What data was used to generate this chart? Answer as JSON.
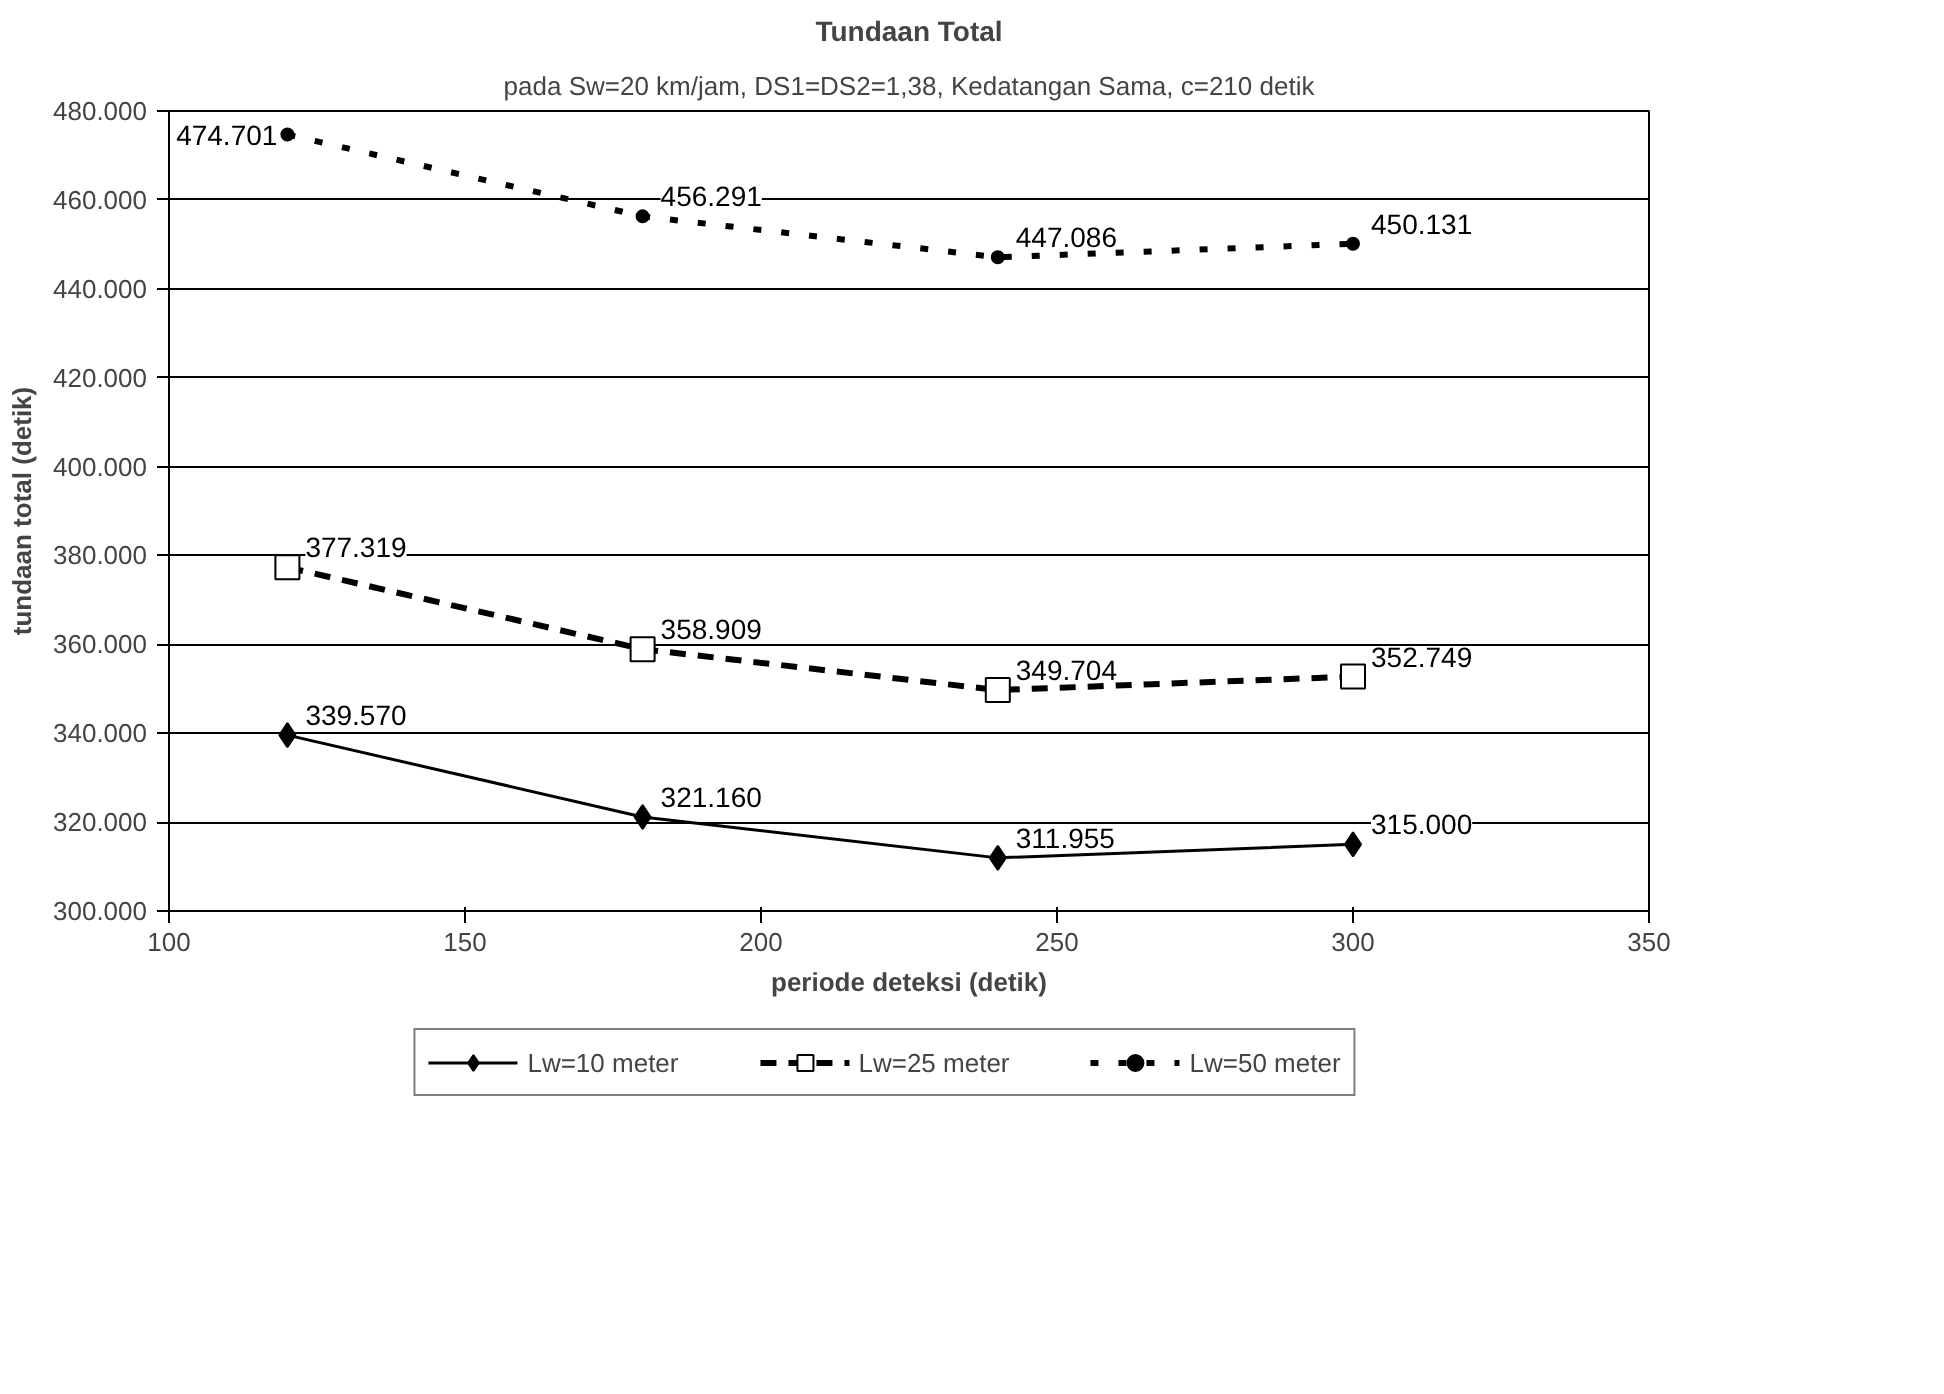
{
  "chart_data": {
    "type": "line",
    "title": "Tundaan Total",
    "subtitle": "pada Sw=20 km/jam, DS1=DS2=1,38, Kedatangan Sama, c=210 detik",
    "xlabel": "periode deteksi (detik)",
    "ylabel": "tundaan total (detik)",
    "x": [
      120,
      180,
      240,
      300
    ],
    "series": [
      {
        "name": "Lw=10 meter",
        "color": "#000000",
        "marker": "diamond",
        "line_style": "solid",
        "values": [
          339570,
          321160,
          311955,
          315000
        ],
        "value_labels": [
          "339.570",
          "321.160",
          "311.955",
          "315.000"
        ]
      },
      {
        "name": "Lw=25 meter",
        "color": "#000000",
        "marker": "square",
        "line_style": "dashed",
        "values": [
          377319,
          358909,
          349704,
          352749
        ],
        "value_labels": [
          "377.319",
          "358.909",
          "349.704",
          "352.749"
        ]
      },
      {
        "name": "Lw=50 meter",
        "color": "#000000",
        "marker": "circle",
        "line_style": "dotted",
        "values": [
          474701,
          456291,
          447086,
          450131
        ],
        "value_labels": [
          "474.701",
          "456.291",
          "447.086",
          "450.131"
        ]
      }
    ],
    "xlim": [
      100,
      350
    ],
    "xticks": [
      100,
      150,
      200,
      250,
      300,
      350
    ],
    "ylim": [
      300000,
      480000
    ],
    "yticks": [
      {
        "value": 300000,
        "label": "300.000"
      },
      {
        "value": 320000,
        "label": "320.000"
      },
      {
        "value": 340000,
        "label": "340.000"
      },
      {
        "value": 360000,
        "label": "360.000"
      },
      {
        "value": 380000,
        "label": "380.000"
      },
      {
        "value": 400000,
        "label": "400.000"
      },
      {
        "value": 420000,
        "label": "420.000"
      },
      {
        "value": 440000,
        "label": "440.000"
      },
      {
        "value": 460000,
        "label": "460.000"
      },
      {
        "value": 480000,
        "label": "480.000"
      }
    ],
    "grid": "y",
    "legend": "bottom"
  }
}
